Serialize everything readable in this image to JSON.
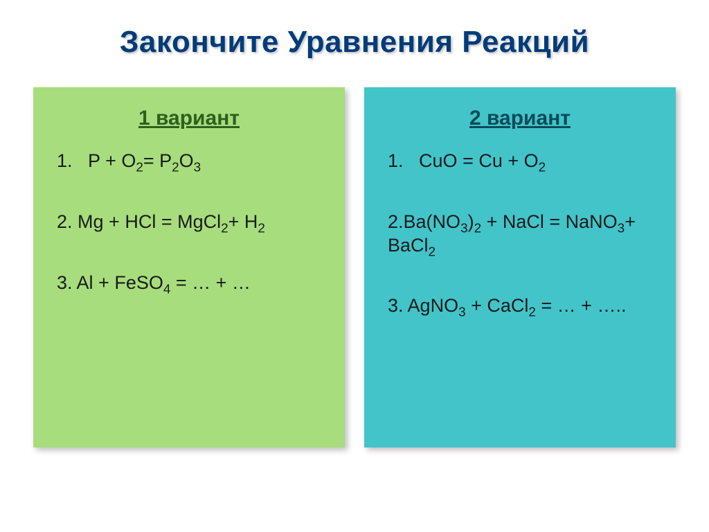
{
  "title": "Закончите Уравнения Реакций",
  "variants": {
    "left": {
      "heading": "1 вариант",
      "bg_color": "#a7dd7d",
      "heading_color": "#2f5f1d",
      "equations": [
        {
          "num": "1.",
          "indent": true,
          "html": "P + O<sub>2</sub>= P<sub>2</sub>O<sub>3</sub>"
        },
        {
          "num": "2.",
          "indent": false,
          "html": "Mg + HCl = MgCl<sub>2</sub>+ H<sub>2</sub>"
        },
        {
          "num": "3.",
          "indent": false,
          "html": "Al + FeSO<sub>4</sub> = … + …"
        }
      ]
    },
    "right": {
      "heading": "2 вариант",
      "bg_color": "#42c4c9",
      "heading_color": "#0a4a5a",
      "equations": [
        {
          "num": "1.",
          "indent": true,
          "html": "CuO = Cu + O<sub>2</sub>"
        },
        {
          "num": "2.",
          "indent": false,
          "html": "Ba(NO<sub>3</sub>)<sub>2</sub> + NaCl = NaNO<sub>3</sub>+ BaCl<sub>2</sub>"
        },
        {
          "num": "3.",
          "indent": false,
          "html": "AgNO<sub>3</sub> + CaCl<sub>2</sub> = … + ….."
        }
      ]
    }
  },
  "style": {
    "title_color": "#003b7a",
    "title_fontsize": 44,
    "body_fontsize": 27,
    "heading_fontsize": 30,
    "slide_bg": "#ffffff",
    "card_shadow": "4px 4px 8px rgba(0,0,0,0.25)"
  }
}
